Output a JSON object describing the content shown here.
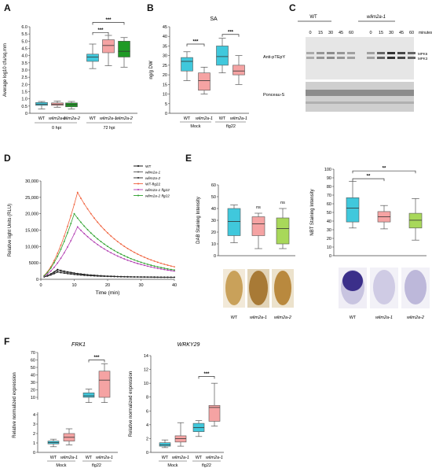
{
  "panel_letters": {
    "a": "A",
    "b": "B",
    "c": "C",
    "d": "D",
    "e": "E",
    "f": "F"
  },
  "colors": {
    "cyan": "#40c8dc",
    "pink": "#f5a3a3",
    "green_light": "#a8d85a",
    "green_dark": "#1f9a25"
  },
  "chart_data": [
    {
      "id": "A",
      "type": "box",
      "ylabel": "Average log10 cfu/sq.mm",
      "ylim": [
        0,
        6.0
      ],
      "yticks": [
        "0",
        "0.5",
        "1.0",
        "1.5",
        "2.0",
        "2.5",
        "3.0",
        "3.5",
        "4.0",
        "4.5",
        "5.0",
        "5.5",
        "6.0"
      ],
      "groups": [
        {
          "name": "0 hpi",
          "categories": [
            "WT",
            "wlim2a-1",
            "wlim2a-2"
          ]
        },
        {
          "name": "72 hpi",
          "categories": [
            "WT",
            "wlim2a-1",
            "wlim2a-2"
          ]
        }
      ],
      "boxes": [
        {
          "cat": "WT",
          "group": "0 hpi",
          "min": 0.3,
          "q1": 0.55,
          "median": 0.62,
          "q3": 0.75,
          "max": 0.82
        },
        {
          "cat": "wlim2a-1",
          "group": "0 hpi",
          "min": 0.42,
          "q1": 0.55,
          "median": 0.62,
          "q3": 0.72,
          "max": 0.85
        },
        {
          "cat": "wlim2a-2",
          "group": "0 hpi",
          "min": 0.3,
          "q1": 0.45,
          "median": 0.6,
          "q3": 0.72,
          "max": 0.82
        },
        {
          "cat": "WT",
          "group": "72 hpi",
          "min": 3.1,
          "q1": 3.6,
          "median": 3.9,
          "q3": 4.1,
          "max": 4.8
        },
        {
          "cat": "wlim2a-1",
          "group": "72 hpi",
          "min": 3.3,
          "q1": 4.2,
          "median": 4.7,
          "q3": 5.1,
          "max": 5.4
        },
        {
          "cat": "wlim2a-2",
          "group": "72 hpi",
          "min": 3.2,
          "q1": 3.9,
          "median": 4.3,
          "q3": 5.0,
          "max": 5.25
        }
      ],
      "significance": [
        "***",
        "***"
      ]
    },
    {
      "id": "B",
      "type": "box",
      "title": "SA",
      "ylabel": "ng/g DW",
      "ylim": [
        0,
        45
      ],
      "yticks": [
        "0",
        "5",
        "10",
        "15",
        "20",
        "25",
        "30",
        "35",
        "40",
        "45"
      ],
      "groups": [
        {
          "name": "Mock",
          "categories": [
            "WT",
            "wlim2a-1"
          ]
        },
        {
          "name": "flg22",
          "categories": [
            "WT",
            "wlim2a-1"
          ]
        }
      ],
      "boxes": [
        {
          "cat": "WT",
          "group": "Mock",
          "min": 17,
          "q1": 22,
          "median": 27,
          "q3": 29,
          "max": 32
        },
        {
          "cat": "wlim2a-1",
          "group": "Mock",
          "min": 10,
          "q1": 12,
          "median": 17,
          "q3": 21,
          "max": 24
        },
        {
          "cat": "WT",
          "group": "flg22",
          "min": 21,
          "q1": 25,
          "median": 29.5,
          "q3": 35,
          "max": 39
        },
        {
          "cat": "wlim2a-1",
          "group": "flg22",
          "min": 15,
          "q1": 20,
          "median": 22,
          "q3": 25,
          "max": 30
        }
      ],
      "significance": [
        "***",
        "***"
      ]
    },
    {
      "id": "D",
      "type": "line",
      "ylabel": "Relative light Units (RLU)",
      "xlabel": "Time (min)",
      "xlim": [
        0,
        40
      ],
      "ylim": [
        0,
        30000
      ],
      "xticks": [
        "0",
        "10",
        "20",
        "30",
        "40"
      ],
      "yticks": [
        "0",
        "5000",
        "10,000",
        "15,000",
        "20,000",
        "25,000",
        "30,000"
      ],
      "legend_position": "top-right",
      "series": [
        {
          "name": "WT",
          "color": "#000000",
          "peak": 3000,
          "tpeak": 5
        },
        {
          "name": "wlim2a-1",
          "color": "#555555",
          "peak": 2600,
          "tpeak": 5
        },
        {
          "name": "wlim2a-2",
          "color": "#222222",
          "peak": 2200,
          "tpeak": 5
        },
        {
          "name": "WT-flg22",
          "color": "#f0603b",
          "peak": 26500,
          "tpeak": 11
        },
        {
          "name": "wlim2a-1 flg22",
          "color": "#b03ab0",
          "peak": 16000,
          "tpeak": 11
        },
        {
          "name": "wlim2a-2 flg22",
          "color": "#2ca02c",
          "peak": 20000,
          "tpeak": 10
        }
      ]
    },
    {
      "id": "E1",
      "type": "box",
      "ylabel": "DAB Staining Intensity",
      "ylim": [
        0,
        60
      ],
      "yticks": [
        "0",
        "10",
        "20",
        "30",
        "40",
        "50",
        "60"
      ],
      "categories": [
        "WT",
        "wlim2a-1",
        "wlim2a-2"
      ],
      "boxes": [
        {
          "cat": "WT",
          "min": 11,
          "q1": 17,
          "median": 29,
          "q3": 40,
          "max": 43
        },
        {
          "cat": "wlim2a-1",
          "min": 6,
          "q1": 17,
          "median": 27,
          "q3": 33,
          "max": 36
        },
        {
          "cat": "wlim2a-2",
          "min": 6,
          "q1": 10,
          "median": 23,
          "q3": 32,
          "max": 40
        }
      ],
      "annotations": [
        "ns",
        "ns"
      ]
    },
    {
      "id": "E2",
      "type": "box",
      "ylabel": "NBT Staining Intensity",
      "ylim": [
        0,
        100
      ],
      "yticks": [
        "0",
        "10",
        "20",
        "30",
        "40",
        "50",
        "60",
        "70",
        "80",
        "90",
        "100"
      ],
      "categories": [
        "WT",
        "wlim2a-1",
        "wlim2a-2"
      ],
      "boxes": [
        {
          "cat": "WT",
          "min": 32,
          "q1": 39,
          "median": 55,
          "q3": 67,
          "max": 86
        },
        {
          "cat": "wlim2a-1",
          "min": 31,
          "q1": 39,
          "median": 45,
          "q3": 51,
          "max": 58
        },
        {
          "cat": "wlim2a-2",
          "min": 18,
          "q1": 32,
          "median": 41,
          "q3": 49,
          "max": 66
        }
      ],
      "significance": [
        "**",
        "**"
      ]
    },
    {
      "id": "F1",
      "type": "box",
      "title": "FRK1",
      "ylabel": "Relative normalized expression",
      "broken_axis": true,
      "yticks_low": [
        "0",
        "1",
        "2",
        "3",
        "4"
      ],
      "yticks_high": [
        "10",
        "20",
        "30",
        "40",
        "50",
        "60",
        "70"
      ],
      "groups": [
        {
          "name": "Mock",
          "categories": [
            "WT",
            "wlim2a-1"
          ]
        },
        {
          "name": "flg22",
          "categories": [
            "WT",
            "wlim2a-1"
          ]
        }
      ],
      "boxes": [
        {
          "cat": "WT",
          "group": "Mock",
          "min": 0.6,
          "q1": 0.9,
          "median": 1.05,
          "q3": 1.2,
          "max": 1.4
        },
        {
          "cat": "wlim2a-1",
          "group": "Mock",
          "min": 0.8,
          "q1": 1.2,
          "median": 1.6,
          "q3": 2.0,
          "max": 2.5
        },
        {
          "cat": "WT",
          "group": "flg22",
          "min": 8,
          "q1": 10,
          "median": 12,
          "q3": 16,
          "max": 21
        },
        {
          "cat": "wlim2a-1",
          "group": "flg22",
          "min": 8,
          "q1": 10,
          "median": 33,
          "q3": 45,
          "max": 55
        }
      ],
      "significance": [
        "***"
      ]
    },
    {
      "id": "F2",
      "type": "box",
      "title": "WRKY29",
      "ylabel": "Relative normalized expression",
      "ylim": [
        0,
        14
      ],
      "yticks": [
        "0",
        "2",
        "4",
        "6",
        "8",
        "10",
        "12",
        "14"
      ],
      "groups": [
        {
          "name": "Mock",
          "categories": [
            "WT",
            "wlim2a-1"
          ]
        },
        {
          "name": "flg22",
          "categories": [
            "WT",
            "wlim2a-1"
          ]
        }
      ],
      "boxes": [
        {
          "cat": "WT",
          "group": "Mock",
          "min": 0.7,
          "q1": 0.9,
          "median": 1.1,
          "q3": 1.4,
          "max": 1.8
        },
        {
          "cat": "wlim2a-1",
          "group": "Mock",
          "min": 0.9,
          "q1": 1.5,
          "median": 2.0,
          "q3": 2.4,
          "max": 4.3
        },
        {
          "cat": "WT",
          "group": "flg22",
          "min": 2.3,
          "q1": 3.0,
          "median": 3.6,
          "q3": 4.2,
          "max": 4.6
        },
        {
          "cat": "wlim2a-1",
          "group": "flg22",
          "min": 3.8,
          "q1": 4.5,
          "median": 6.5,
          "q3": 6.8,
          "max": 10
        }
      ],
      "significance": [
        "***"
      ]
    }
  ],
  "blot": {
    "genotypes": [
      "WT",
      "wlim2a-1"
    ],
    "timepoints": [
      "0",
      "15",
      "30",
      "45",
      "60",
      "0",
      "15",
      "30",
      "45",
      "60"
    ],
    "time_unit": "minutes",
    "row1_label": "Anti-pTEpY",
    "row2_label": "Ponceau-S",
    "bands": [
      "MPK6",
      "MPK3"
    ]
  },
  "stain_labels": {
    "e_left": [
      "WT",
      "wlim2a-1",
      "wlim2a-2"
    ],
    "e_right": [
      "WT",
      "wlim2a-1",
      "wlim2a-2"
    ]
  }
}
